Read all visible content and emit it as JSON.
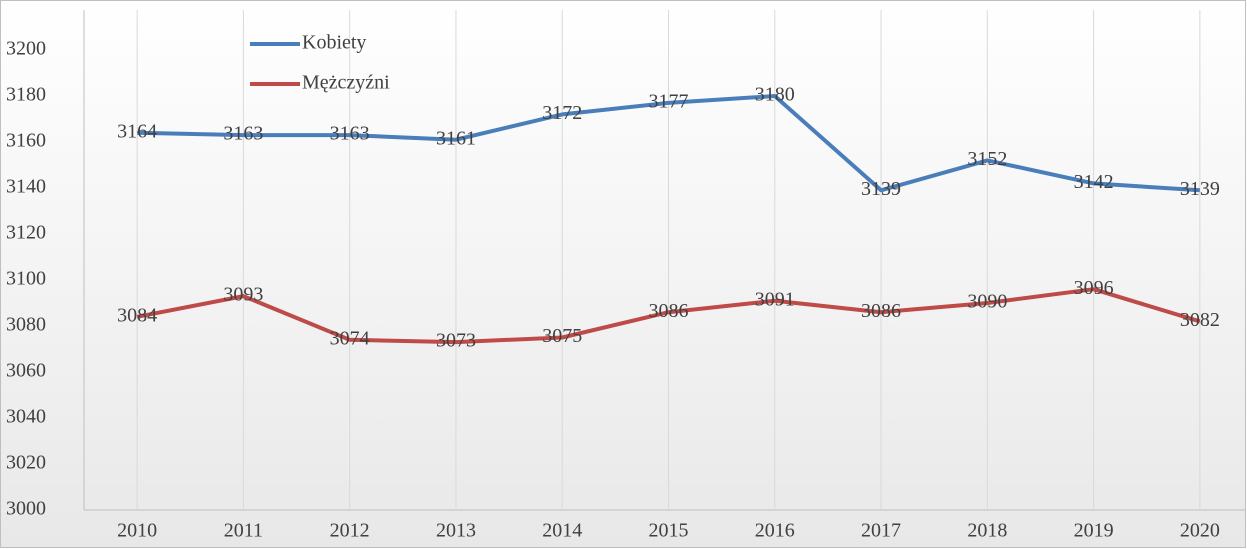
{
  "chart_data": {
    "type": "line",
    "categories": [
      "2010",
      "2011",
      "2012",
      "2013",
      "2014",
      "2015",
      "2016",
      "2017",
      "2018",
      "2019",
      "2020"
    ],
    "series": [
      {
        "name": "Kobiety",
        "color": "#4a7ebb",
        "values": [
          3164,
          3163,
          3163,
          3161,
          3172,
          3177,
          3180,
          3139,
          3152,
          3142,
          3139
        ]
      },
      {
        "name": "Mężczyźni",
        "color": "#be4b48",
        "values": [
          3084,
          3093,
          3074,
          3073,
          3075,
          3086,
          3091,
          3086,
          3090,
          3096,
          3082
        ]
      }
    ],
    "ylim": [
      3000,
      3200
    ],
    "yticks": [
      3000,
      3020,
      3040,
      3060,
      3080,
      3100,
      3120,
      3140,
      3160,
      3180,
      3200
    ],
    "grid": true
  }
}
